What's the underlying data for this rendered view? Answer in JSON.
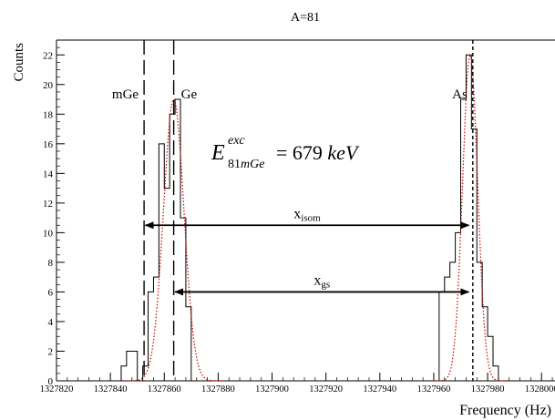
{
  "chart_data": {
    "type": "histogram",
    "title": "A=81",
    "xlabel": "Frequency (Hz)",
    "ylabel": "Counts",
    "xlim": [
      1327820,
      1328005
    ],
    "ylim": [
      0,
      23
    ],
    "xticks": [
      1327820,
      1327840,
      1327860,
      1327880,
      1327900,
      1327920,
      1327940,
      1327960,
      1327980,
      1328000
    ],
    "yticks": [
      0,
      2,
      4,
      6,
      8,
      10,
      12,
      14,
      16,
      18,
      20,
      22
    ],
    "bin_width": 2,
    "histogram": {
      "edges": [
        1327844,
        1327846,
        1327848,
        1327850,
        1327852,
        1327854,
        1327856,
        1327858,
        1327860,
        1327862,
        1327864,
        1327866,
        1327868,
        1327870,
        1327962,
        1327964,
        1327966,
        1327968,
        1327970,
        1327972,
        1327974,
        1327976,
        1327978,
        1327980,
        1327982,
        1327984
      ],
      "counts": [
        1,
        2,
        2,
        0,
        1,
        6,
        7,
        16,
        13,
        18,
        19,
        11,
        5,
        0,
        6,
        7,
        8,
        10,
        19,
        22,
        17,
        8,
        5,
        3,
        1,
        0
      ],
      "color": "#000000"
    },
    "fits": [
      {
        "mu": 1327863.5,
        "sigma": 3.8,
        "amp": 19,
        "color": "#cc0000",
        "style": "dotted"
      },
      {
        "mu": 1327973.5,
        "sigma": 2.8,
        "amp": 22,
        "color": "#cc0000",
        "style": "dotted"
      }
    ],
    "vlines": [
      {
        "x": 1327852.5,
        "label": "mGe",
        "style": "long-dash"
      },
      {
        "x": 1327863.5,
        "label": "Ge",
        "style": "long-dash"
      },
      {
        "x": 1327974.5,
        "label": "As",
        "style": "short-dash"
      }
    ],
    "arrows": [
      {
        "from": 1327853,
        "to": 1327973,
        "y": 10.5,
        "label_main": "x",
        "label_sub": "isom"
      },
      {
        "from": 1327864,
        "to": 1327973,
        "y": 6,
        "label_main": "x",
        "label_sub": "gs"
      }
    ],
    "annotation": {
      "symbol": "E",
      "superscript": "exc",
      "subscript": "81mGe",
      "text": "= 679 keV"
    }
  }
}
